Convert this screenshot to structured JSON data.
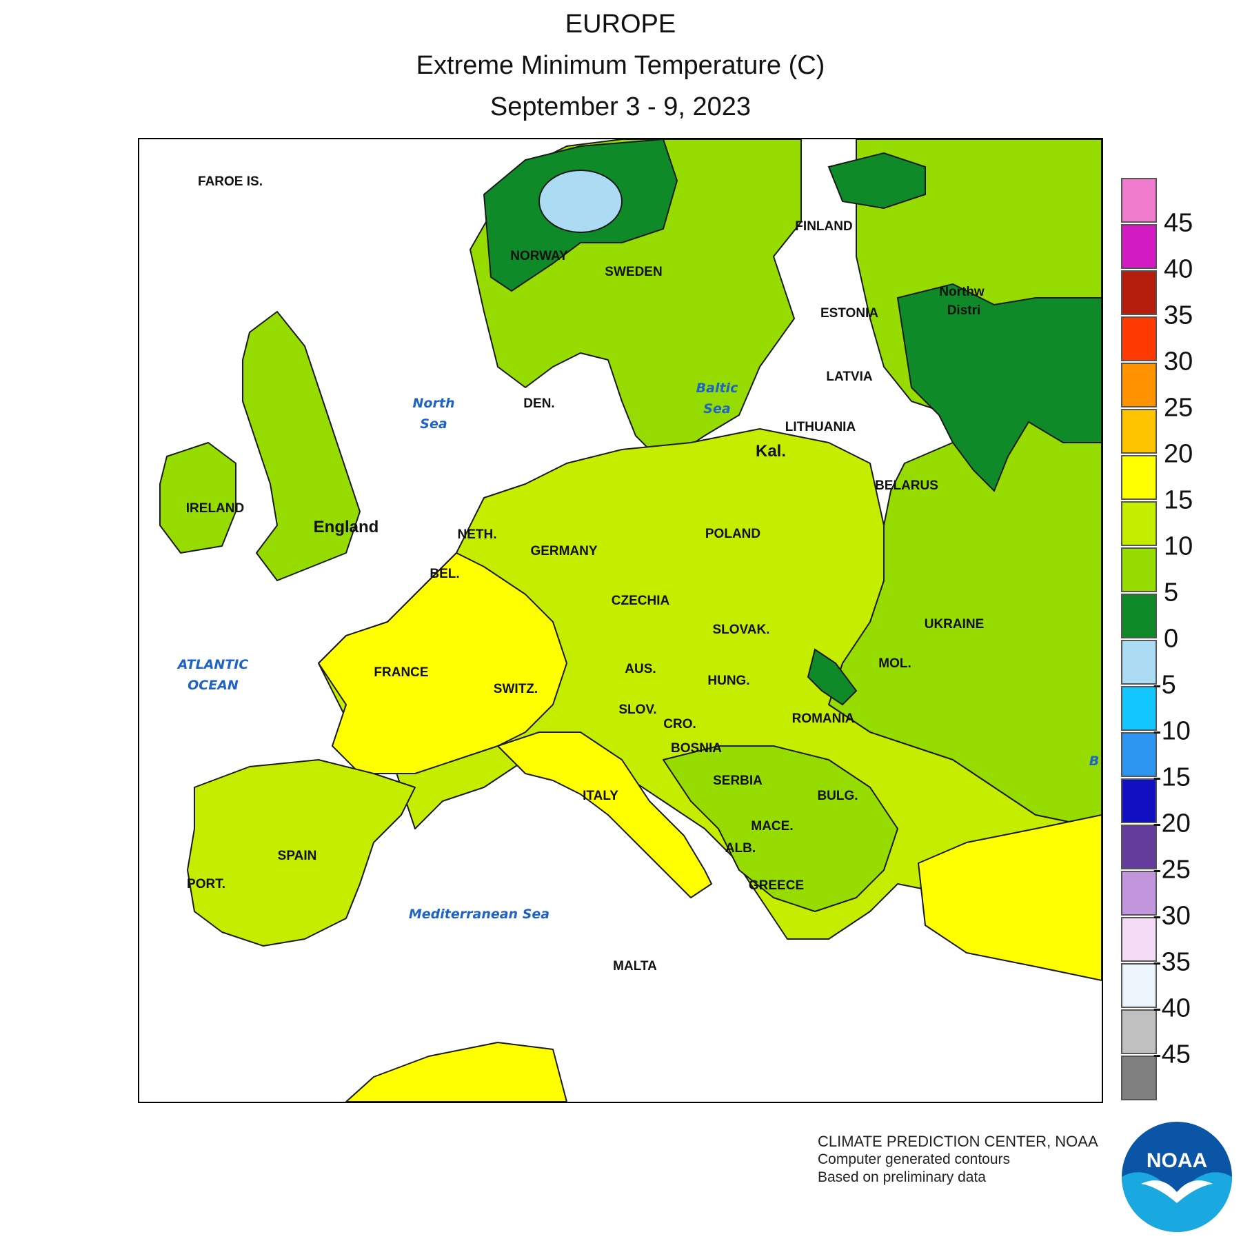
{
  "header": {
    "region": "EUROPE",
    "variable": "Extreme Minimum Temperature (C)",
    "period": "September 3 - 9, 2023"
  },
  "legend": {
    "ticks": [
      "45",
      "40",
      "35",
      "30",
      "25",
      "20",
      "15",
      "10",
      "5",
      "0",
      "-5",
      "-10",
      "-15",
      "-20",
      "-25",
      "-30",
      "-35",
      "-40",
      "-45"
    ],
    "colors": [
      "#f07ccd",
      "#d21bc3",
      "#b51d0c",
      "#ff3a00",
      "#ff9400",
      "#ffc400",
      "#ffff00",
      "#c5ed00",
      "#96dc00",
      "#0f8a29",
      "#acdcf4",
      "#15c7ff",
      "#2c96f0",
      "#1010c0",
      "#643c9c",
      "#c296dc",
      "#f5dcf6",
      "#ecf5fc",
      "#c0c0c0",
      "#808080"
    ]
  },
  "labels": {
    "faroe": "FAROE IS.",
    "norway": "NORWAY",
    "sweden": "SWEDEN",
    "finland": "FINLAND",
    "estonia": "ESTONIA",
    "latvia": "LATVIA",
    "lithuania": "LITHUANIA",
    "kal": "Kal.",
    "belarus": "BELARUS",
    "northwest_district_1": "Northw",
    "northwest_district_2": "Distri",
    "ireland": "IRELAND",
    "england": "England",
    "den": "DEN.",
    "neth": "NETH.",
    "germany": "GERMANY",
    "poland": "POLAND",
    "bel": "BEL.",
    "czechia": "CZECHIA",
    "slovak": "SLOVAK.",
    "ukraine": "UKRAINE",
    "france": "FRANCE",
    "switz": "SWITZ.",
    "aus": "AUS.",
    "hung": "HUNG.",
    "mol": "MOL.",
    "slov": "SLOV.",
    "cro": "CRO.",
    "romania": "ROMANIA",
    "bosnia": "BOSNIA",
    "serbia": "SERBIA",
    "italy": "ITALY",
    "bulg": "BULG.",
    "mace": "MACE.",
    "alb": "ALB.",
    "spain": "SPAIN",
    "port": "PORT.",
    "greece": "GREECE",
    "malta": "MALTA",
    "black_sea_partial": "B"
  },
  "seas": {
    "north_sea_1": "North",
    "north_sea_2": "Sea",
    "baltic_sea_1": "Baltic",
    "baltic_sea_2": "Sea",
    "atlantic_1": "ATLANTIC",
    "atlantic_2": "OCEAN",
    "mediterranean": "Mediterranean Sea"
  },
  "credits": {
    "line1": "CLIMATE PREDICTION CENTER, NOAA",
    "line2": "Computer generated contours",
    "line3": "Based on preliminary data"
  },
  "logo": {
    "text": "NOAA",
    "icon": "noaa-seagull-logo"
  }
}
